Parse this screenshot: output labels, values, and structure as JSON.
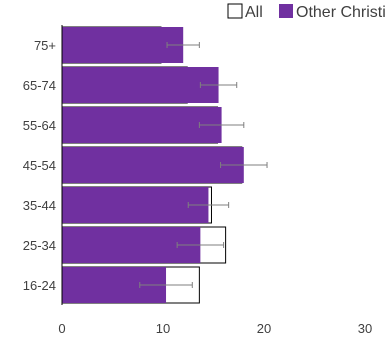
{
  "chart_data": {
    "type": "bar",
    "orientation": "horizontal",
    "categories": [
      "75+",
      "65-74",
      "55-64",
      "45-54",
      "35-44",
      "25-34",
      "16-24"
    ],
    "series": [
      {
        "name": "All",
        "values": [
          9.8,
          12.4,
          15.4,
          17.8,
          14.8,
          16.2,
          13.6
        ],
        "color": "#ffffff",
        "outline": "#000000"
      },
      {
        "name": "Other Christian",
        "values": [
          12.0,
          15.5,
          15.8,
          18.0,
          14.5,
          13.7,
          10.3
        ],
        "color": "#7030a0",
        "error": [
          1.6,
          1.8,
          2.2,
          2.3,
          2.0,
          2.3,
          2.6
        ]
      }
    ],
    "xlim": [
      0,
      30
    ],
    "xticks": [
      "0",
      "10",
      "20",
      "30"
    ],
    "legend": "top-right",
    "grid": false,
    "title": "",
    "xlabel": "",
    "ylabel": ""
  }
}
